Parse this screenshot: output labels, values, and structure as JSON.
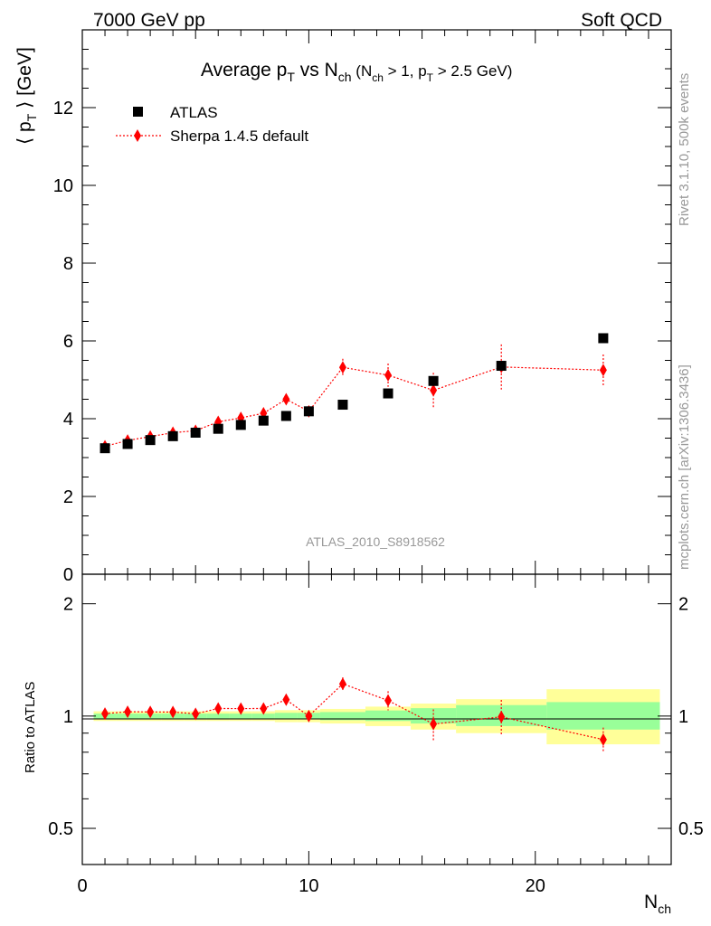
{
  "header": {
    "left": "7000 GeV pp",
    "right": "Soft QCD"
  },
  "side_labels": {
    "rivet": "Rivet 3.1.10,  500k events",
    "mcplots": "mcplots.cern.ch [arXiv:1306.3436]"
  },
  "watermark": "ATLAS_2010_S8918562",
  "colors": {
    "data": "#000000",
    "mc": "#ff0000",
    "band_inner": "#99ff99",
    "band_outer": "#ffff99"
  },
  "chart_data": [
    {
      "type": "scatter",
      "title": "Average p_T vs N_ch (N_ch > 1, p_T > 2.5 GeV)",
      "ylabel": "⟨ p_T ⟩ [GeV]",
      "xlabel": "N_ch",
      "xlim": [
        0,
        26
      ],
      "ylim": [
        0,
        14
      ],
      "yticks": [
        0,
        2,
        4,
        6,
        8,
        10,
        12
      ],
      "xticks": [
        0,
        10,
        20
      ],
      "legend_position": "top-left",
      "series": [
        {
          "name": "ATLAS",
          "marker": "square",
          "points": [
            {
              "x": 1,
              "y": 3.24
            },
            {
              "x": 2,
              "y": 3.35
            },
            {
              "x": 3,
              "y": 3.45
            },
            {
              "x": 4,
              "y": 3.55
            },
            {
              "x": 5,
              "y": 3.64
            },
            {
              "x": 6,
              "y": 3.74
            },
            {
              "x": 7,
              "y": 3.84
            },
            {
              "x": 8,
              "y": 3.95
            },
            {
              "x": 9,
              "y": 4.07
            },
            {
              "x": 10,
              "y": 4.19
            },
            {
              "x": 11.5,
              "y": 4.36
            },
            {
              "x": 13.5,
              "y": 4.65
            },
            {
              "x": 15.5,
              "y": 4.97
            },
            {
              "x": 18.5,
              "y": 5.36
            },
            {
              "x": 23,
              "y": 6.07
            }
          ]
        },
        {
          "name": "Sherpa 1.4.5 default",
          "marker": "diamond",
          "line": "dotted",
          "points": [
            {
              "x": 1,
              "y": 3.29,
              "err": 0.05
            },
            {
              "x": 2,
              "y": 3.44,
              "err": 0.05
            },
            {
              "x": 3,
              "y": 3.54,
              "err": 0.05
            },
            {
              "x": 4,
              "y": 3.64,
              "err": 0.05
            },
            {
              "x": 5,
              "y": 3.69,
              "err": 0.05
            },
            {
              "x": 6,
              "y": 3.92,
              "err": 0.06
            },
            {
              "x": 7,
              "y": 4.02,
              "err": 0.06
            },
            {
              "x": 8,
              "y": 4.14,
              "err": 0.08
            },
            {
              "x": 9,
              "y": 4.5,
              "err": 0.12
            },
            {
              "x": 10,
              "y": 4.19,
              "err": 0.08
            },
            {
              "x": 11.5,
              "y": 5.32,
              "err": 0.22
            },
            {
              "x": 13.5,
              "y": 5.12,
              "err": 0.3
            },
            {
              "x": 15.5,
              "y": 4.73,
              "err": 0.45
            },
            {
              "x": 18.5,
              "y": 5.33,
              "err": 0.58
            },
            {
              "x": 23,
              "y": 5.25,
              "err": 0.4
            }
          ]
        }
      ]
    },
    {
      "type": "scatter",
      "ylabel": "Ratio to ATLAS",
      "xlabel": "N_ch",
      "xlim": [
        0,
        26
      ],
      "ylim": [
        0.4,
        2.4
      ],
      "yscale": "log",
      "yticks": [
        0.5,
        1,
        2
      ],
      "xticks": [
        0,
        10,
        20
      ],
      "bands": [
        {
          "x0": 0.5,
          "x1": 1.5,
          "inner": [
            0.985,
            1.015
          ],
          "outer": [
            0.97,
            1.03
          ]
        },
        {
          "x0": 1.5,
          "x1": 2.5,
          "inner": [
            0.985,
            1.015
          ],
          "outer": [
            0.97,
            1.03
          ]
        },
        {
          "x0": 2.5,
          "x1": 3.5,
          "inner": [
            0.985,
            1.015
          ],
          "outer": [
            0.97,
            1.03
          ]
        },
        {
          "x0": 3.5,
          "x1": 4.5,
          "inner": [
            0.985,
            1.015
          ],
          "outer": [
            0.97,
            1.03
          ]
        },
        {
          "x0": 4.5,
          "x1": 5.5,
          "inner": [
            0.985,
            1.015
          ],
          "outer": [
            0.97,
            1.03
          ]
        },
        {
          "x0": 5.5,
          "x1": 6.5,
          "inner": [
            0.985,
            1.015
          ],
          "outer": [
            0.97,
            1.03
          ]
        },
        {
          "x0": 6.5,
          "x1": 7.5,
          "inner": [
            0.985,
            1.015
          ],
          "outer": [
            0.97,
            1.03
          ]
        },
        {
          "x0": 7.5,
          "x1": 8.5,
          "inner": [
            0.985,
            1.015
          ],
          "outer": [
            0.97,
            1.03
          ]
        },
        {
          "x0": 8.5,
          "x1": 9.5,
          "inner": [
            0.98,
            1.02
          ],
          "outer": [
            0.963,
            1.037
          ]
        },
        {
          "x0": 9.5,
          "x1": 10.5,
          "inner": [
            0.98,
            1.02
          ],
          "outer": [
            0.963,
            1.037
          ]
        },
        {
          "x0": 10.5,
          "x1": 12.5,
          "inner": [
            0.975,
            1.025
          ],
          "outer": [
            0.955,
            1.045
          ]
        },
        {
          "x0": 12.5,
          "x1": 14.5,
          "inner": [
            0.97,
            1.035
          ],
          "outer": [
            0.94,
            1.06
          ]
        },
        {
          "x0": 14.5,
          "x1": 16.5,
          "inner": [
            0.955,
            1.05
          ],
          "outer": [
            0.92,
            1.08
          ]
        },
        {
          "x0": 16.5,
          "x1": 20.5,
          "inner": [
            0.94,
            1.07
          ],
          "outer": [
            0.9,
            1.11
          ]
        },
        {
          "x0": 20.5,
          "x1": 25.5,
          "inner": [
            0.92,
            1.09
          ],
          "outer": [
            0.84,
            1.18
          ]
        }
      ],
      "series": [
        {
          "name": "Sherpa 1.4.5 default",
          "marker": "diamond",
          "line": "dotted",
          "points": [
            {
              "x": 1,
              "y": 1.015,
              "err": 0.015
            },
            {
              "x": 2,
              "y": 1.027,
              "err": 0.015
            },
            {
              "x": 3,
              "y": 1.026,
              "err": 0.015
            },
            {
              "x": 4,
              "y": 1.025,
              "err": 0.015
            },
            {
              "x": 5,
              "y": 1.014,
              "err": 0.015
            },
            {
              "x": 6,
              "y": 1.048,
              "err": 0.016
            },
            {
              "x": 7,
              "y": 1.047,
              "err": 0.016
            },
            {
              "x": 8,
              "y": 1.048,
              "err": 0.02
            },
            {
              "x": 9,
              "y": 1.106,
              "err": 0.025
            },
            {
              "x": 10,
              "y": 1.0,
              "err": 0.02
            },
            {
              "x": 11.5,
              "y": 1.22,
              "err": 0.05
            },
            {
              "x": 13.5,
              "y": 1.101,
              "err": 0.065
            },
            {
              "x": 15.5,
              "y": 0.952,
              "err": 0.09
            },
            {
              "x": 18.5,
              "y": 0.995,
              "err": 0.11
            },
            {
              "x": 23,
              "y": 0.865,
              "err": 0.066
            }
          ]
        }
      ]
    }
  ]
}
